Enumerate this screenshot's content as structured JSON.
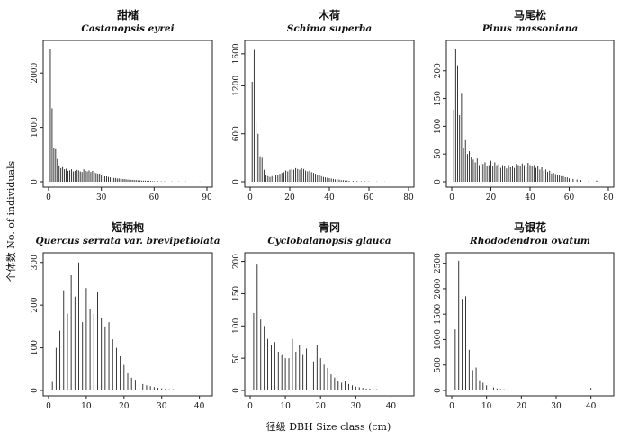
{
  "figure": {
    "ylabel": "个体数 No. of individuals",
    "xlabel": "径级 DBH Size class (cm)"
  },
  "chart_data": [
    {
      "type": "bar",
      "title": "甜槠",
      "subtitle": "Castanopsis eyrei",
      "xlim": [
        0,
        90
      ],
      "ylim": [
        0,
        2500
      ],
      "xticks": [
        0,
        30,
        60,
        90
      ],
      "yticks": [
        0,
        1000,
        2000
      ],
      "x": [
        1,
        2,
        3,
        4,
        5,
        6,
        7,
        8,
        9,
        10,
        11,
        12,
        13,
        14,
        15,
        16,
        17,
        18,
        19,
        20,
        21,
        22,
        23,
        24,
        25,
        26,
        27,
        28,
        29,
        30,
        31,
        32,
        33,
        34,
        35,
        36,
        37,
        38,
        39,
        40,
        41,
        42,
        43,
        44,
        45,
        46,
        47,
        48,
        49,
        50,
        51,
        52,
        53,
        54,
        55,
        56,
        57,
        58,
        59,
        60,
        62,
        64,
        66,
        70,
        74,
        78,
        82,
        86
      ],
      "values": [
        2450,
        1350,
        620,
        600,
        420,
        300,
        250,
        270,
        230,
        240,
        200,
        210,
        230,
        190,
        200,
        220,
        210,
        190,
        180,
        230,
        200,
        190,
        210,
        180,
        200,
        170,
        160,
        150,
        150,
        120,
        110,
        100,
        100,
        90,
        80,
        80,
        70,
        70,
        60,
        60,
        55,
        50,
        50,
        45,
        40,
        40,
        35,
        35,
        30,
        30,
        25,
        25,
        20,
        20,
        20,
        15,
        15,
        15,
        10,
        10,
        10,
        8,
        6,
        5,
        5,
        4,
        3,
        3
      ]
    },
    {
      "type": "bar",
      "title": "木荷",
      "subtitle": "Schima superba",
      "xlim": [
        0,
        80
      ],
      "ylim": [
        0,
        1700
      ],
      "xticks": [
        0,
        20,
        40,
        60,
        80
      ],
      "yticks": [
        0,
        600,
        1200,
        1600
      ],
      "x": [
        1,
        2,
        3,
        4,
        5,
        6,
        7,
        8,
        9,
        10,
        11,
        12,
        13,
        14,
        15,
        16,
        17,
        18,
        19,
        20,
        21,
        22,
        23,
        24,
        25,
        26,
        27,
        28,
        29,
        30,
        31,
        32,
        33,
        34,
        35,
        36,
        37,
        38,
        39,
        40,
        41,
        42,
        43,
        44,
        45,
        46,
        47,
        48,
        49,
        50,
        52,
        54,
        56,
        58,
        60,
        64,
        68
      ],
      "values": [
        1250,
        1650,
        750,
        600,
        320,
        300,
        150,
        80,
        70,
        60,
        70,
        60,
        80,
        90,
        100,
        110,
        120,
        140,
        130,
        150,
        160,
        150,
        170,
        160,
        150,
        170,
        160,
        140,
        130,
        140,
        120,
        110,
        100,
        90,
        80,
        70,
        60,
        55,
        50,
        45,
        40,
        35,
        30,
        30,
        25,
        20,
        20,
        15,
        15,
        10,
        10,
        8,
        6,
        5,
        4,
        3,
        2
      ]
    },
    {
      "type": "bar",
      "title": "马尾松",
      "subtitle": "Pinus massoniana",
      "xlim": [
        0,
        80
      ],
      "ylim": [
        0,
        245
      ],
      "xticks": [
        0,
        20,
        40,
        60,
        80
      ],
      "yticks": [
        0,
        50,
        100,
        150,
        200
      ],
      "x": [
        1,
        2,
        3,
        4,
        5,
        6,
        7,
        8,
        9,
        10,
        11,
        12,
        13,
        14,
        15,
        16,
        17,
        18,
        19,
        20,
        21,
        22,
        23,
        24,
        25,
        26,
        27,
        28,
        29,
        30,
        31,
        32,
        33,
        34,
        35,
        36,
        37,
        38,
        39,
        40,
        41,
        42,
        43,
        44,
        45,
        46,
        47,
        48,
        49,
        50,
        51,
        52,
        53,
        54,
        55,
        56,
        57,
        58,
        59,
        60,
        62,
        64,
        66,
        70,
        74
      ],
      "values": [
        130,
        240,
        210,
        120,
        160,
        60,
        75,
        50,
        55,
        45,
        40,
        35,
        42,
        30,
        38,
        32,
        35,
        28,
        30,
        38,
        28,
        35,
        30,
        32,
        25,
        30,
        28,
        24,
        30,
        26,
        28,
        25,
        32,
        30,
        28,
        33,
        30,
        26,
        34,
        30,
        28,
        30,
        25,
        28,
        22,
        26,
        20,
        22,
        18,
        20,
        15,
        16,
        14,
        12,
        12,
        10,
        10,
        8,
        8,
        6,
        5,
        4,
        3,
        2,
        2
      ]
    },
    {
      "type": "bar",
      "title": "短柄枹",
      "subtitle": "Quercus serrata var. brevipetiolata",
      "xlim": [
        0,
        42
      ],
      "ylim": [
        0,
        310
      ],
      "xticks": [
        0,
        10,
        20,
        30,
        40
      ],
      "yticks": [
        0,
        100,
        200,
        300
      ],
      "x": [
        1,
        2,
        3,
        4,
        5,
        6,
        7,
        8,
        9,
        10,
        11,
        12,
        13,
        14,
        15,
        16,
        17,
        18,
        19,
        20,
        21,
        22,
        23,
        24,
        25,
        26,
        27,
        28,
        29,
        30,
        31,
        32,
        33,
        34,
        36,
        38,
        40
      ],
      "values": [
        20,
        100,
        140,
        235,
        180,
        270,
        220,
        300,
        160,
        240,
        190,
        180,
        230,
        170,
        150,
        160,
        120,
        100,
        80,
        60,
        40,
        30,
        25,
        20,
        15,
        12,
        10,
        8,
        6,
        5,
        4,
        3,
        3,
        2,
        2,
        1,
        1
      ]
    },
    {
      "type": "bar",
      "title": "青冈",
      "subtitle": "Cyclobalanopsis glauca",
      "xlim": [
        0,
        45
      ],
      "ylim": [
        0,
        205
      ],
      "xticks": [
        0,
        10,
        20,
        30,
        40
      ],
      "yticks": [
        0,
        50,
        100,
        150,
        200
      ],
      "x": [
        1,
        2,
        3,
        4,
        5,
        6,
        7,
        8,
        9,
        10,
        11,
        12,
        13,
        14,
        15,
        16,
        17,
        18,
        19,
        20,
        21,
        22,
        23,
        24,
        25,
        26,
        27,
        28,
        29,
        30,
        31,
        32,
        33,
        34,
        35,
        36,
        38,
        40,
        42,
        44
      ],
      "values": [
        120,
        195,
        110,
        100,
        80,
        70,
        75,
        60,
        55,
        50,
        50,
        80,
        60,
        70,
        55,
        65,
        50,
        45,
        70,
        50,
        40,
        35,
        25,
        20,
        15,
        12,
        15,
        10,
        8,
        6,
        5,
        4,
        3,
        3,
        2,
        2,
        1,
        1,
        1,
        1
      ]
    },
    {
      "type": "bar",
      "title": "马银花",
      "subtitle": "Rhododendron ovatum",
      "xlim": [
        0,
        45
      ],
      "ylim": [
        0,
        2600
      ],
      "xticks": [
        0,
        10,
        20,
        30,
        40
      ],
      "yticks": [
        0,
        500,
        1000,
        1500,
        2000,
        2500
      ],
      "x": [
        1,
        2,
        3,
        4,
        5,
        6,
        7,
        8,
        9,
        10,
        11,
        12,
        13,
        14,
        15,
        16,
        17,
        18,
        20,
        22,
        24,
        26,
        28,
        30,
        40
      ],
      "values": [
        1200,
        2550,
        1800,
        1850,
        800,
        400,
        450,
        200,
        150,
        100,
        80,
        60,
        40,
        30,
        25,
        20,
        15,
        10,
        8,
        6,
        5,
        4,
        3,
        2,
        50
      ]
    }
  ]
}
